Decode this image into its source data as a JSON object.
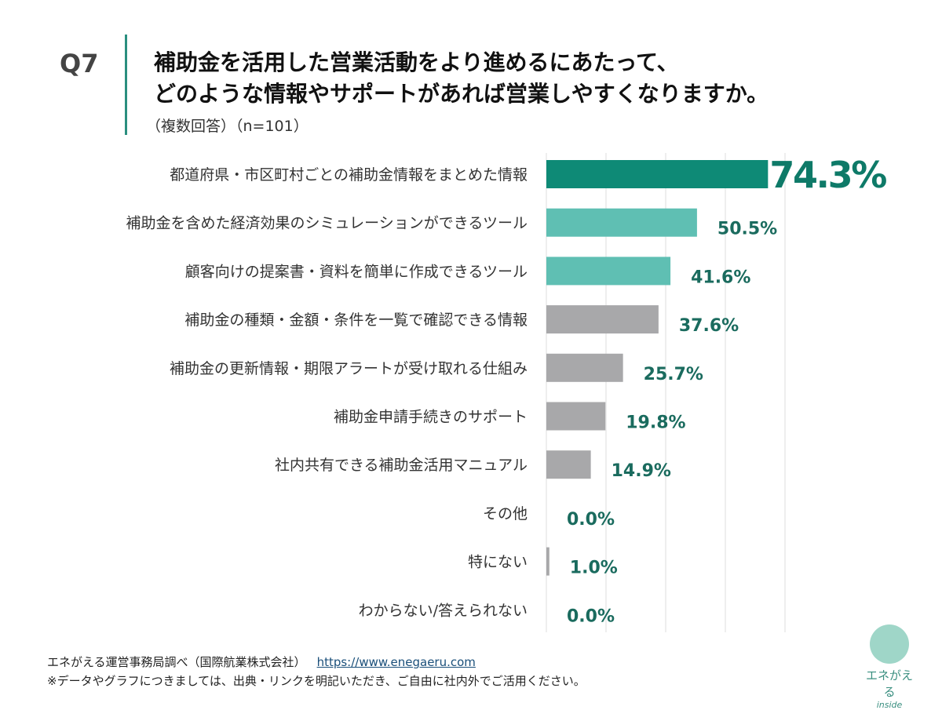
{
  "header": {
    "question": "Q7",
    "title_line1": "補助金を活用した営業活動をより進めるにあたって、",
    "title_line2": "どのような情報やサポートがあれば営業しやすくなりますか。",
    "subtitle": "（複数回答）（n=101）"
  },
  "footer": {
    "source": "エネがえる運営事務局調べ（国際航業株式会社）",
    "url": "https://www.enegaeru.com",
    "note": "※データやグラフにつきましては、出典・リンクを明記いただき、ご自由に社内外でご活用ください。"
  },
  "logo": {
    "text1": "エネがえる",
    "text2": "inside"
  },
  "chart_data": {
    "type": "bar",
    "orientation": "horizontal",
    "xlim": [
      0,
      80
    ],
    "grid": true,
    "categories": [
      "都道府県・市区町村ごとの補助金情報をまとめた情報",
      "補助金を含めた経済効果のシミュレーションができるツール",
      "顧客向けの提案書・資料を簡単に作成できるツール",
      "補助金の種類・金額・条件を一覧で確認できる情報",
      "補助金の更新情報・期限アラートが受け取れる仕組み",
      "補助金申請手続きのサポート",
      "社内共有できる補助金活用マニュアル",
      "その他",
      "特にない",
      "わからない/答えられない"
    ],
    "values": [
      74.3,
      50.5,
      41.6,
      37.6,
      25.7,
      19.8,
      14.9,
      0.0,
      1.0,
      0.0
    ],
    "labels": [
      "74.3%",
      "50.5%",
      "41.6%",
      "37.6%",
      "25.7%",
      "19.8%",
      "14.9%",
      "0.0%",
      "1.0%",
      "0.0%"
    ],
    "colors": [
      "#0e8a76",
      "#5fbfb3",
      "#5fbfb3",
      "#a8a8aa",
      "#a8a8aa",
      "#a8a8aa",
      "#a8a8aa",
      "#a8a8aa",
      "#a8a8aa",
      "#a8a8aa"
    ],
    "label_color": "#1a6b5e",
    "top_label_color": "#0e7a68"
  }
}
